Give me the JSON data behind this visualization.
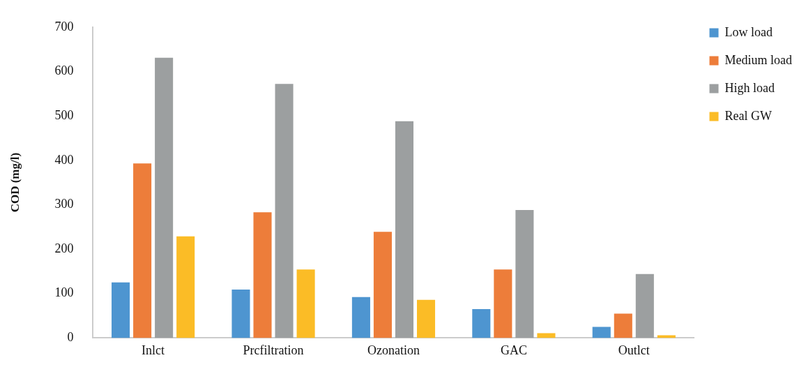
{
  "chart_data": {
    "type": "bar",
    "ylabel": "COD (mg/l)",
    "categories": [
      "Inlct",
      "Prcfiltration",
      "Ozonation",
      "GAC",
      "Outlct"
    ],
    "series": [
      {
        "name": "Low load",
        "color": "#4e95d0",
        "values": [
          125,
          109,
          92,
          65,
          25
        ]
      },
      {
        "name": "Medium load",
        "color": "#ed7d3a",
        "values": [
          393,
          283,
          239,
          154,
          55
        ]
      },
      {
        "name": "High load",
        "color": "#9c9fa0",
        "values": [
          631,
          572,
          488,
          288,
          144
        ]
      },
      {
        "name": "Real GW",
        "color": "#fbbc26",
        "values": [
          229,
          154,
          86,
          11,
          6
        ]
      }
    ],
    "ylim": [
      0,
      700
    ],
    "yticks": [
      0,
      100,
      200,
      300,
      400,
      500,
      600,
      700
    ],
    "grid": false,
    "legend": "top right"
  }
}
